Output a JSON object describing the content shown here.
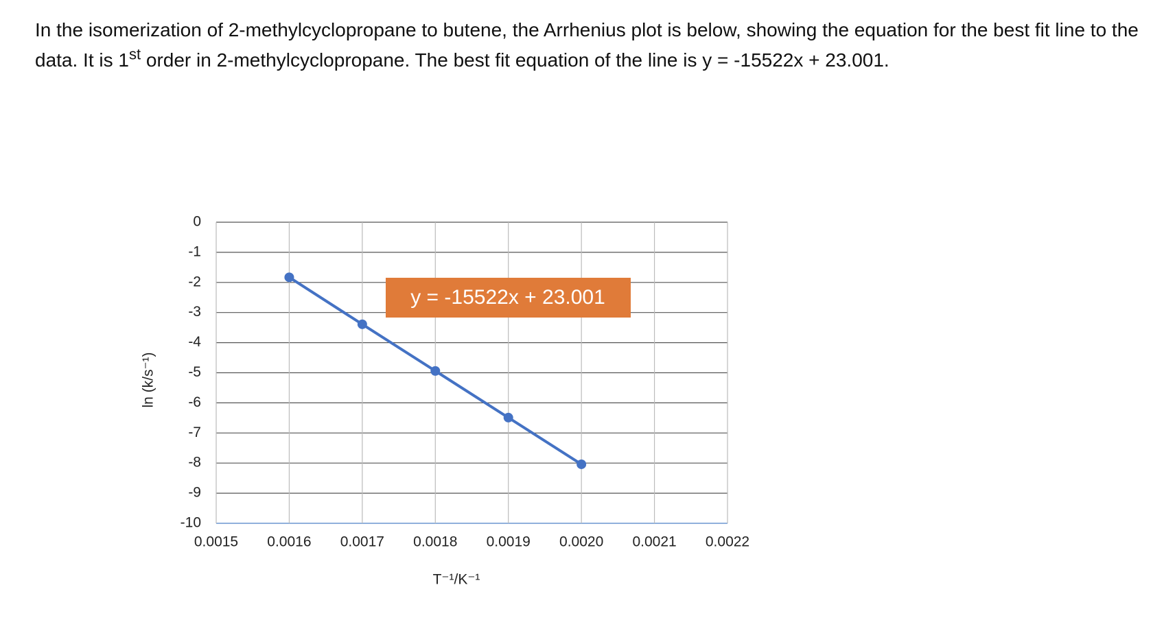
{
  "question": {
    "text_before": "In the isomerization of 2-methylcyclopropane to butene, the Arrhenius plot is below, showing the equation for the best fit line to the data. It is 1",
    "superscript": "st",
    "text_after": " order in 2-methylcyclopropane.  The best fit equation of the line is y = -15522x + 23.001."
  },
  "chart_data": {
    "type": "line",
    "x_label": "T⁻¹/K⁻¹",
    "y_label": "ln (k/s⁻¹)",
    "annotation": "y =  -15522x + 23.001",
    "x": [
      0.0016,
      0.0017,
      0.0018,
      0.0019,
      0.002
    ],
    "values": [
      -1.83,
      -3.39,
      -4.94,
      -6.49,
      -8.04
    ],
    "color": "#4472c4",
    "xlim": [
      0.0015,
      0.0022
    ],
    "xticks": [
      0.0015,
      0.0016,
      0.0017,
      0.0018,
      0.0019,
      {
        "value": 0.002,
        "label": "0.0020"
      },
      0.0021,
      0.0022
    ],
    "ylim": [
      -10,
      0
    ],
    "yticks": [
      0,
      -1,
      -2,
      -3,
      -4,
      -5,
      -6,
      -7,
      -8,
      -9,
      -10
    ],
    "grid": true
  }
}
